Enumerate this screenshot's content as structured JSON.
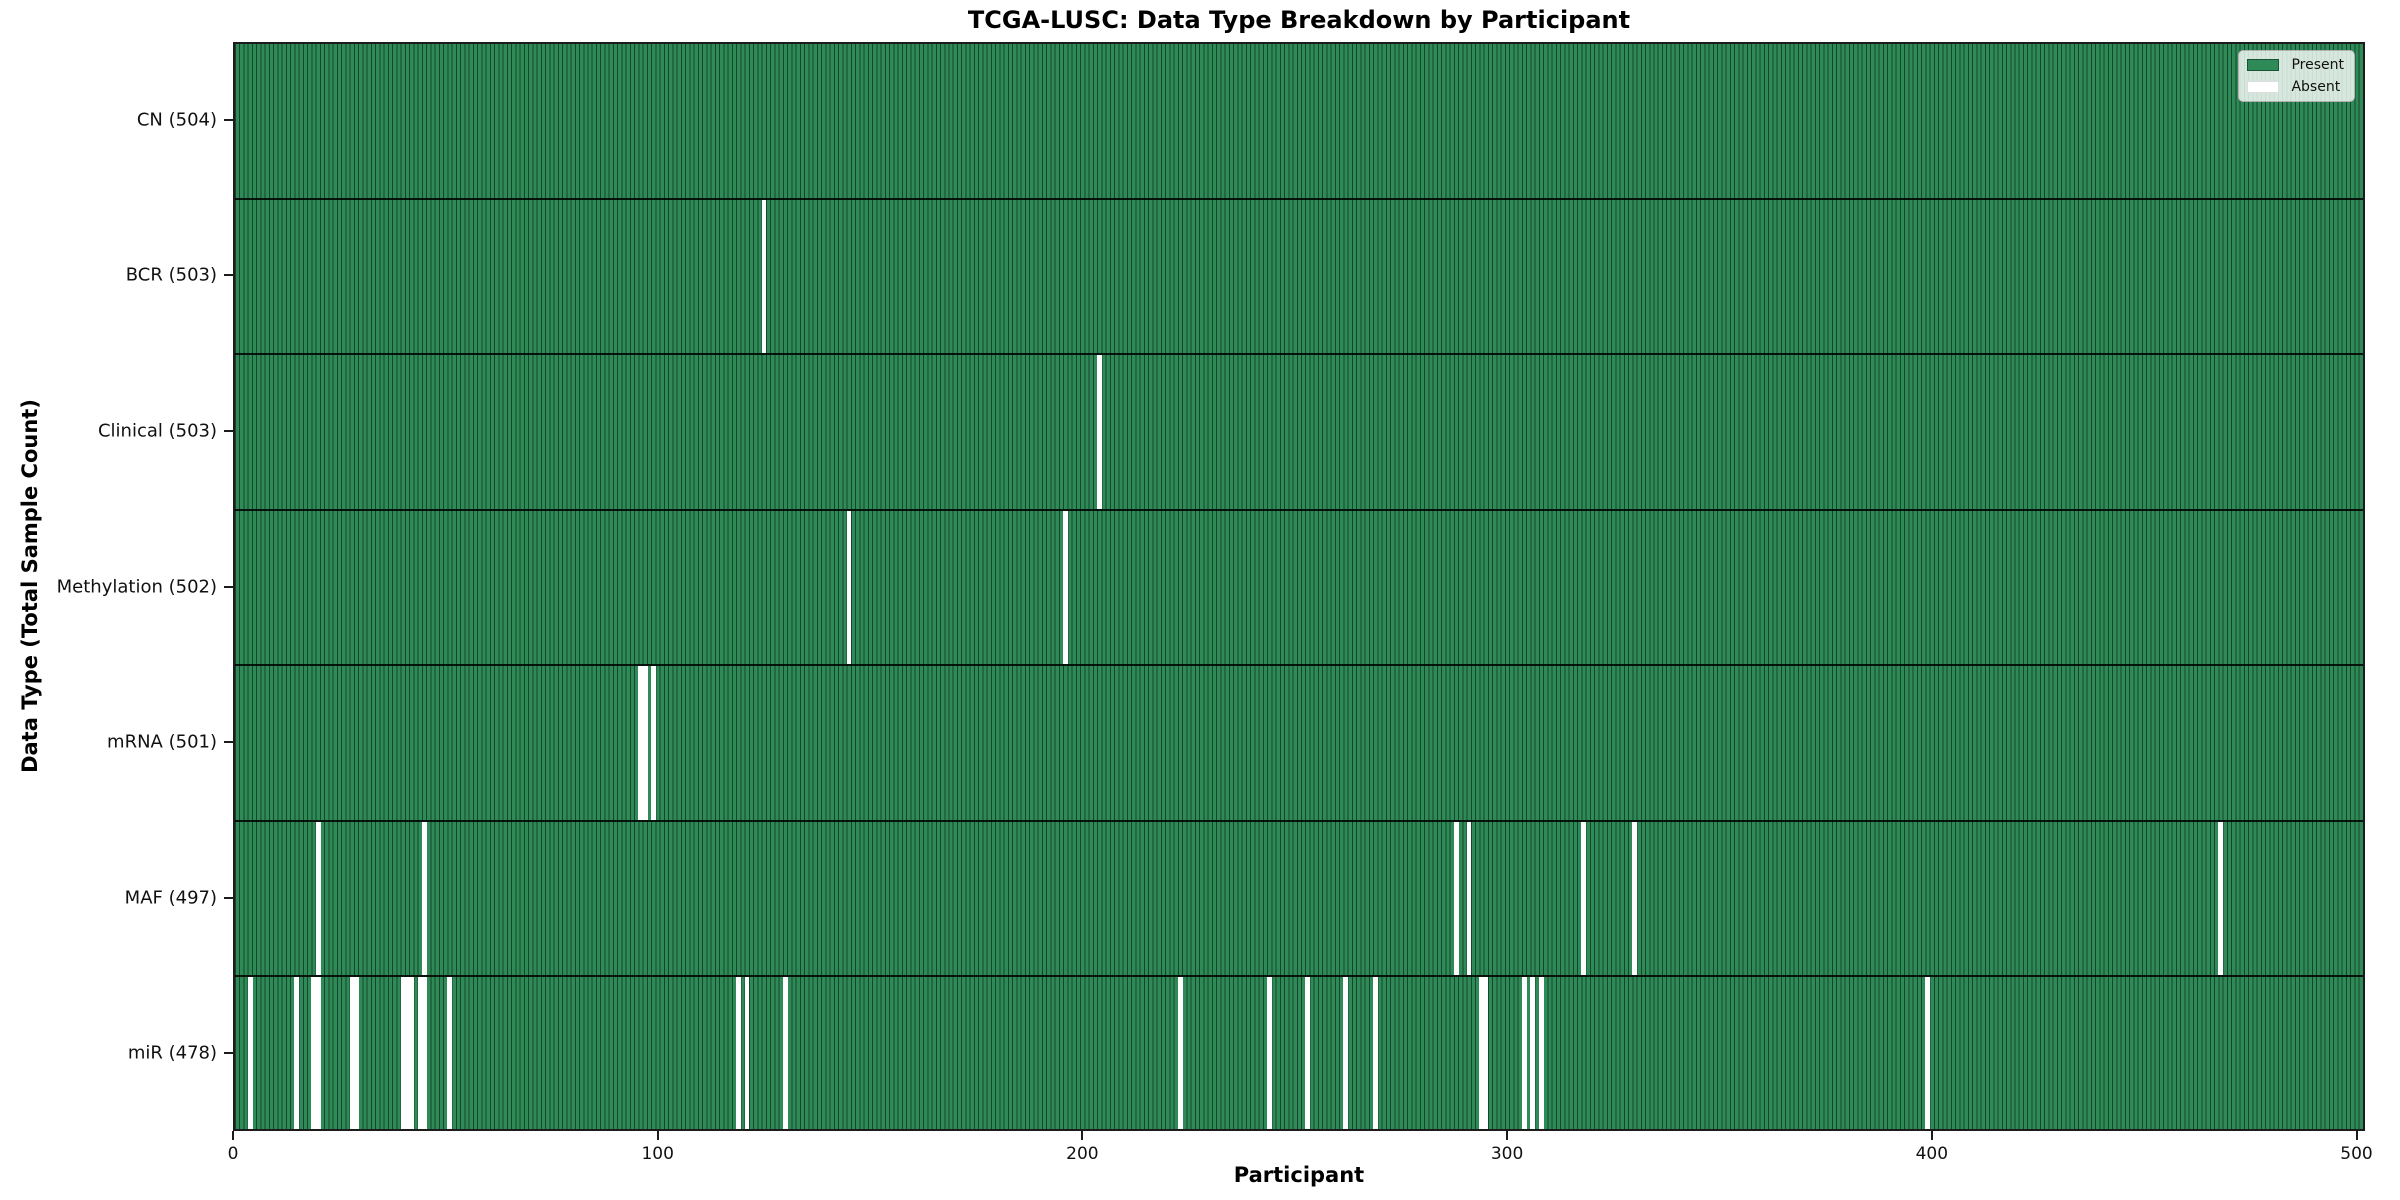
{
  "chart_data": {
    "type": "heatmap",
    "title": "TCGA-LUSC: Data Type Breakdown by Participant",
    "xlabel": "Participant",
    "ylabel": "Data Type (Total Sample Count)",
    "x_ticks": [
      0,
      100,
      200,
      300,
      400,
      500
    ],
    "xlim": [
      0,
      502
    ],
    "n_participants": 504,
    "grid": false,
    "legend": {
      "position": "upper right",
      "entries": [
        {
          "label": "Present",
          "color": "#2e8b57"
        },
        {
          "label": "Absent",
          "color": "#ffffff"
        }
      ]
    },
    "colors": {
      "present": "#2e8b57",
      "absent": "#ffffff",
      "bar_edge": "rgba(0,0,0,0.5)",
      "spine": "#1c1c1c"
    },
    "rows": [
      {
        "data_type": "CN",
        "label": "CN (504)",
        "total": 504,
        "absent_participants": []
      },
      {
        "data_type": "BCR",
        "label": "BCR (503)",
        "total": 503,
        "absent_participants": [
          124
        ]
      },
      {
        "data_type": "Clinical",
        "label": "Clinical (503)",
        "total": 503,
        "absent_participants": [
          203
        ]
      },
      {
        "data_type": "Methylation",
        "label": "Methylation (502)",
        "total": 502,
        "absent_participants": [
          144,
          195
        ]
      },
      {
        "data_type": "mRNA",
        "label": "mRNA (501)",
        "total": 501,
        "absent_participants": [
          95,
          96,
          98
        ]
      },
      {
        "data_type": "MAF",
        "label": "MAF (497)",
        "total": 497,
        "absent_participants": [
          19,
          44,
          287,
          290,
          317,
          329,
          467
        ]
      },
      {
        "data_type": "miR",
        "label": "miR (478)",
        "total": 478,
        "absent_participants": [
          3,
          14,
          18,
          19,
          27,
          28,
          39,
          40,
          41,
          43,
          44,
          50,
          118,
          120,
          129,
          222,
          243,
          252,
          261,
          268,
          293,
          294,
          303,
          305,
          307,
          398
        ]
      }
    ]
  }
}
